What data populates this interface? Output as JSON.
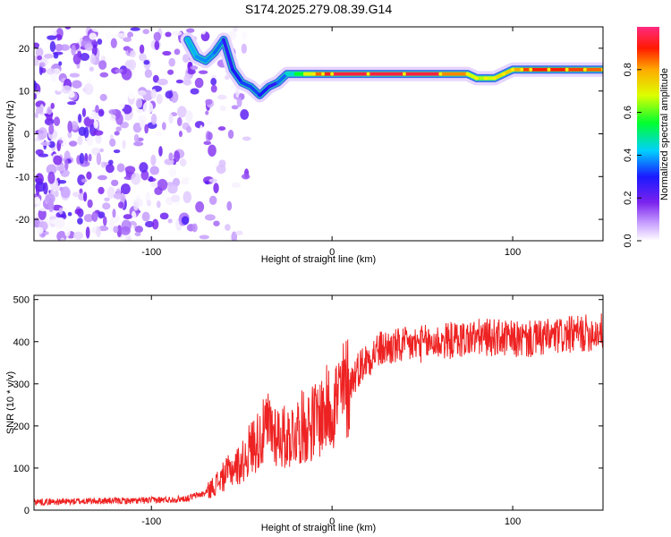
{
  "chart_data": [
    {
      "type": "heatmap",
      "title": "S174.2025.279.08.39.G14",
      "xlabel": "Height of straight line (km)",
      "ylabel": "Frequency (Hz)",
      "xlim": [
        -165,
        150
      ],
      "ylim": [
        -25,
        25
      ],
      "xticks": [
        -100,
        0,
        100
      ],
      "yticks": [
        -20,
        -10,
        0,
        10,
        20
      ],
      "colorbar": {
        "label": "Normalized spectral amplitude",
        "range": [
          0,
          1
        ],
        "ticks": [
          "0.0",
          "0.2",
          "0.4",
          "0.6",
          "0.8"
        ]
      },
      "ridge": {
        "x": [
          -80,
          -75,
          -70,
          -65,
          -60,
          -55,
          -50,
          -45,
          -40,
          -35,
          -30,
          -25,
          -20,
          -15,
          -10,
          -5,
          0,
          20,
          40,
          60,
          75,
          80,
          85,
          90,
          95,
          100,
          105,
          110,
          120,
          130,
          140,
          150
        ],
        "frequency": [
          22,
          18,
          17,
          19,
          22,
          15,
          12,
          11,
          9,
          11,
          12,
          14,
          14,
          14,
          14,
          14,
          14,
          14,
          14,
          14,
          14,
          13,
          13,
          13,
          14,
          15,
          15,
          15,
          15,
          15,
          15,
          15
        ],
        "amplitude": [
          0.4,
          0.4,
          0.35,
          0.4,
          0.3,
          0.25,
          0.35,
          0.3,
          0.35,
          0.25,
          0.3,
          0.4,
          0.5,
          0.6,
          0.8,
          0.9,
          0.95,
          0.95,
          0.95,
          0.95,
          0.7,
          0.65,
          0.65,
          0.7,
          0.75,
          0.75,
          0.85,
          0.9,
          0.9,
          0.9,
          0.85,
          0.85
        ]
      },
      "noise": {
        "x_range": [
          -165,
          -45
        ],
        "amplitude_range": [
          0.0,
          0.25
        ]
      }
    },
    {
      "type": "line",
      "xlabel": "Height of straight line (km)",
      "ylabel": "SNR (10 * v/v)",
      "xlim": [
        -165,
        150
      ],
      "ylim": [
        0,
        510
      ],
      "xticks": [
        -100,
        0,
        100
      ],
      "yticks": [
        0,
        100,
        200,
        300,
        400,
        500
      ],
      "series": [
        {
          "name": "SNR",
          "color": "#ee2222",
          "x": [
            -165,
            -150,
            -130,
            -110,
            -90,
            -80,
            -75,
            -70,
            -65,
            -60,
            -55,
            -50,
            -45,
            -40,
            -35,
            -30,
            -25,
            -20,
            -15,
            -10,
            -5,
            0,
            5,
            10,
            15,
            20,
            25,
            30,
            40,
            50,
            60,
            70,
            80,
            90,
            100,
            110,
            120,
            130,
            140,
            150
          ],
          "y": [
            20,
            20,
            22,
            22,
            25,
            28,
            35,
            40,
            60,
            80,
            100,
            110,
            150,
            170,
            200,
            180,
            170,
            190,
            200,
            210,
            230,
            250,
            275,
            300,
            340,
            360,
            380,
            385,
            390,
            395,
            400,
            405,
            410,
            410,
            405,
            405,
            410,
            415,
            420,
            425
          ]
        }
      ]
    }
  ],
  "colors": {
    "line": "#ee2222",
    "axis": "#000000"
  }
}
